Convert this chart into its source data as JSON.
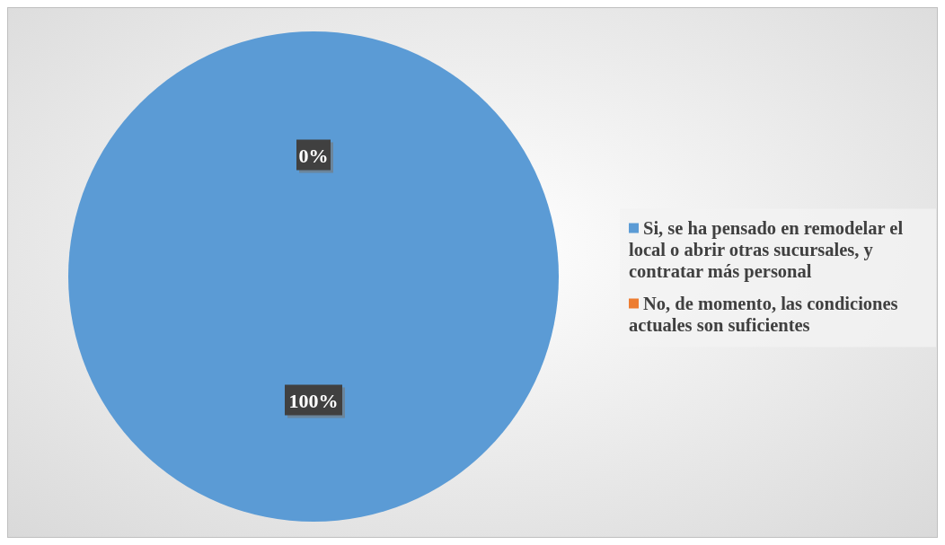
{
  "chart_data": {
    "type": "pie",
    "categories": [
      "Si, se ha pensado en remodelar el local o abrir otras sucursales, y contratar más personal",
      "No, de momento, las condiciones actuales son suficientes"
    ],
    "values": [
      100,
      0
    ],
    "colors": [
      "#5b9bd5",
      "#ed7d31"
    ],
    "value_labels": [
      "100%",
      "0%"
    ],
    "legend": "right"
  }
}
